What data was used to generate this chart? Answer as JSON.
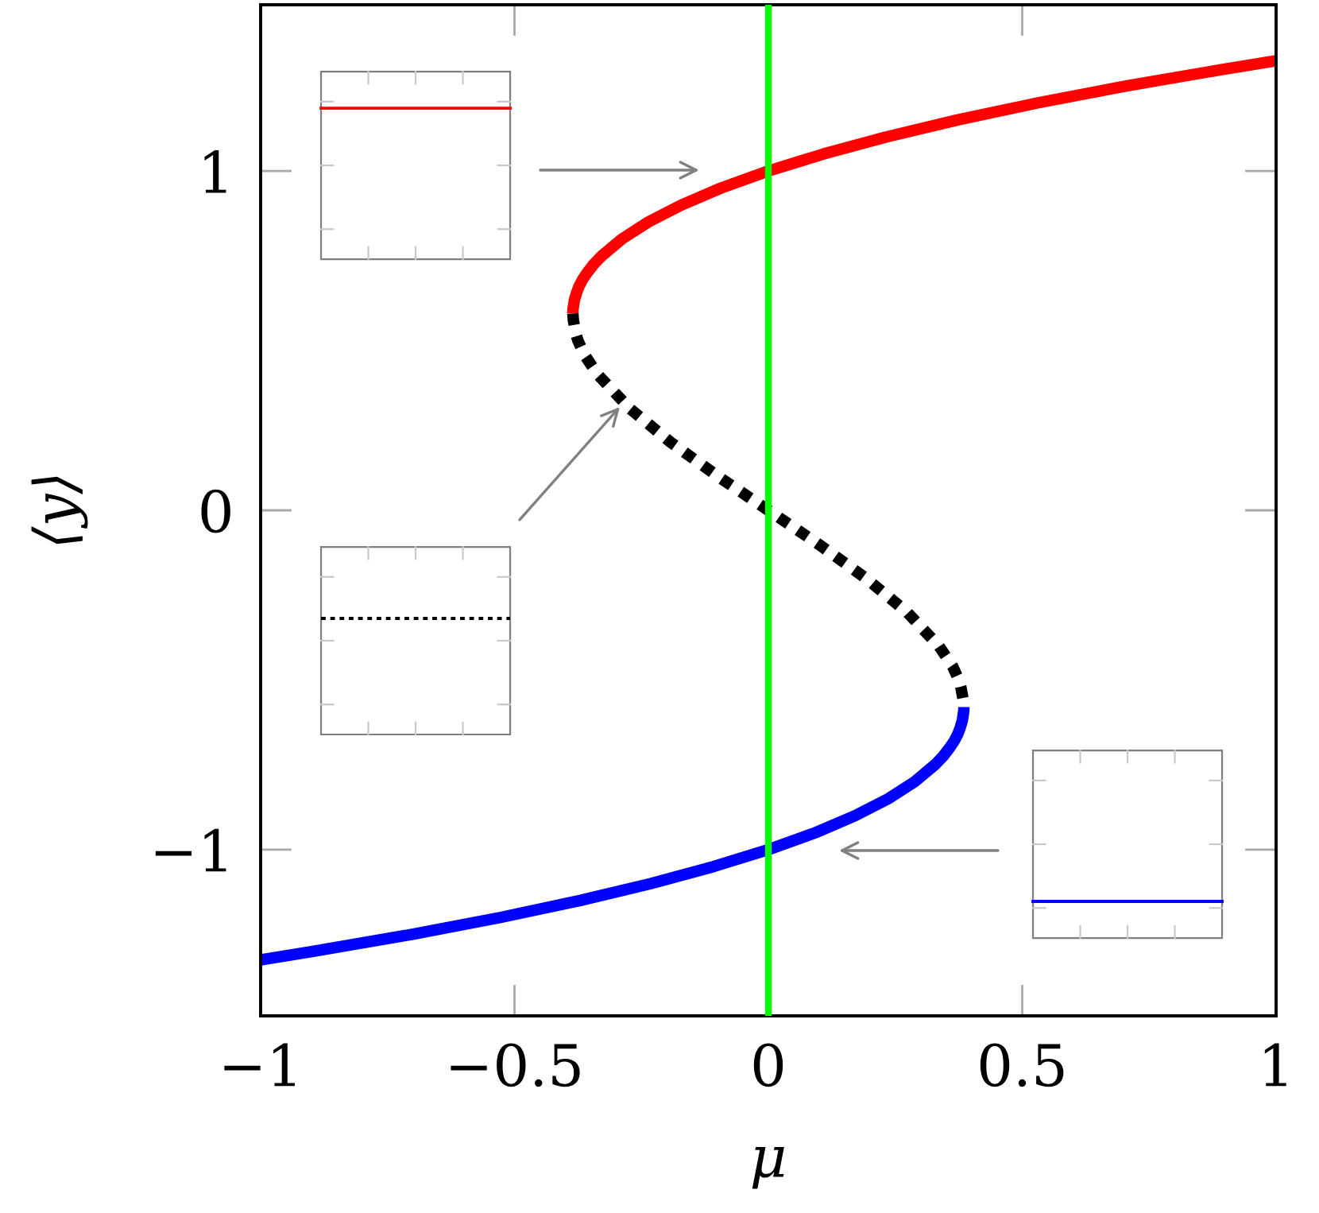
{
  "chart_data": {
    "type": "line",
    "xlabel": "μ",
    "ylabel": "⟨y⟩",
    "xlim": [
      -1,
      1
    ],
    "ylim": [
      -1.49,
      1.49
    ],
    "xticks": [
      {
        "value": -1,
        "label": "−1"
      },
      {
        "value": -0.5,
        "label": "−0.5"
      },
      0,
      0.5,
      1
    ],
    "yticks": [
      {
        "value": -1,
        "label": "−1"
      },
      0,
      1
    ],
    "series": [
      {
        "color": "#ff0000",
        "line_style": "solid",
        "x": [
          -0.385,
          -0.385,
          -0.384,
          -0.382,
          -0.378,
          -0.373,
          -0.366,
          -0.357,
          -0.344,
          -0.328,
          -0.288,
          -0.236,
          -0.171,
          -0.093,
          0,
          0.108,
          0.231,
          0.371,
          0.528,
          0.703,
          0.897,
          1.0
        ],
        "values": [
          0.58,
          0.59,
          0.6,
          0.62,
          0.64,
          0.66,
          0.68,
          0.7,
          0.725,
          0.75,
          0.8,
          0.85,
          0.9,
          0.95,
          1.0,
          1.05,
          1.1,
          1.15,
          1.2,
          1.25,
          1.3,
          1.325
        ]
      },
      {
        "color": "#000000",
        "line_style": "dotted",
        "x": [
          -0.385,
          -0.384,
          -0.379,
          -0.375,
          -0.363,
          -0.336,
          -0.273,
          -0.192,
          -0.099,
          0,
          0.099,
          0.192,
          0.273,
          0.336,
          0.363,
          0.375,
          0.379,
          0.384,
          0.385
        ],
        "values": [
          0.58,
          0.56,
          0.52,
          0.5,
          0.46,
          0.4,
          0.3,
          0.2,
          0.1,
          0,
          -0.1,
          -0.2,
          -0.3,
          -0.4,
          -0.46,
          -0.5,
          -0.52,
          -0.56,
          -0.58
        ]
      },
      {
        "color": "#0000ff",
        "line_style": "solid",
        "x": [
          0.385,
          0.385,
          0.384,
          0.382,
          0.378,
          0.373,
          0.366,
          0.357,
          0.344,
          0.328,
          0.288,
          0.236,
          0.171,
          0.093,
          0,
          -0.108,
          -0.231,
          -0.371,
          -0.528,
          -0.703,
          -0.897,
          -1.0
        ],
        "values": [
          -0.58,
          -0.59,
          -0.6,
          -0.62,
          -0.64,
          -0.66,
          -0.68,
          -0.7,
          -0.725,
          -0.75,
          -0.8,
          -0.85,
          -0.9,
          -0.95,
          -1.0,
          -1.05,
          -1.1,
          -1.15,
          -1.2,
          -1.25,
          -1.3,
          -1.325
        ]
      }
    ],
    "ref_lines": [
      {
        "axis": "x",
        "value": 0,
        "color": "#00ff00",
        "line_style": "solid"
      }
    ]
  }
}
